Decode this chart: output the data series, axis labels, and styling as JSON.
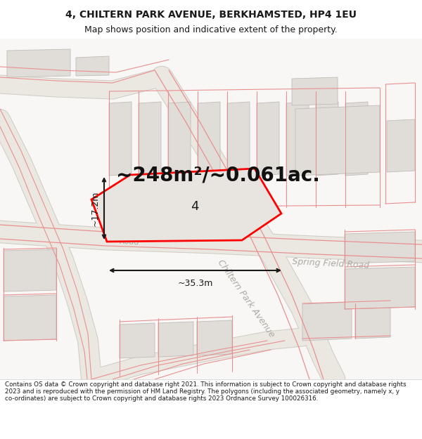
{
  "title_line1": "4, CHILTERN PARK AVENUE, BERKHAMSTED, HP4 1EU",
  "title_line2": "Map shows position and indicative extent of the property.",
  "area_label": "~248m²/~0.061ac.",
  "lot_number": "4",
  "dim_width": "~35.3m",
  "dim_height": "~17.2m",
  "footer": "Contains OS data © Crown copyright and database right 2021. This information is subject to Crown copyright and database rights 2023 and is reproduced with the permission of HM Land Registry. The polygons (including the associated geometry, namely x, y co-ordinates) are subject to Crown copyright and database rights 2023 Ordnance Survey 100026316.",
  "map_bg": "#f8f7f5",
  "road_fill": "#ebe8e2",
  "road_edge": "#d0ccc6",
  "block_fill": "#e0ddd8",
  "block_edge": "#c0bcb8",
  "plot_fill": "#e8e5e0",
  "plot_edge": "#ff0000",
  "street_color": "#b0aaa4",
  "red_line_color": "#e89090",
  "dim_color": "#1a1a1a",
  "title_color": "#1a1a1a",
  "footer_color": "#1a1a1a",
  "title_fontsize": 10,
  "subtitle_fontsize": 9,
  "area_fontsize": 20,
  "lot_fontsize": 13,
  "dim_fontsize": 9,
  "street_fontsize": 9,
  "footer_fontsize": 6.3
}
